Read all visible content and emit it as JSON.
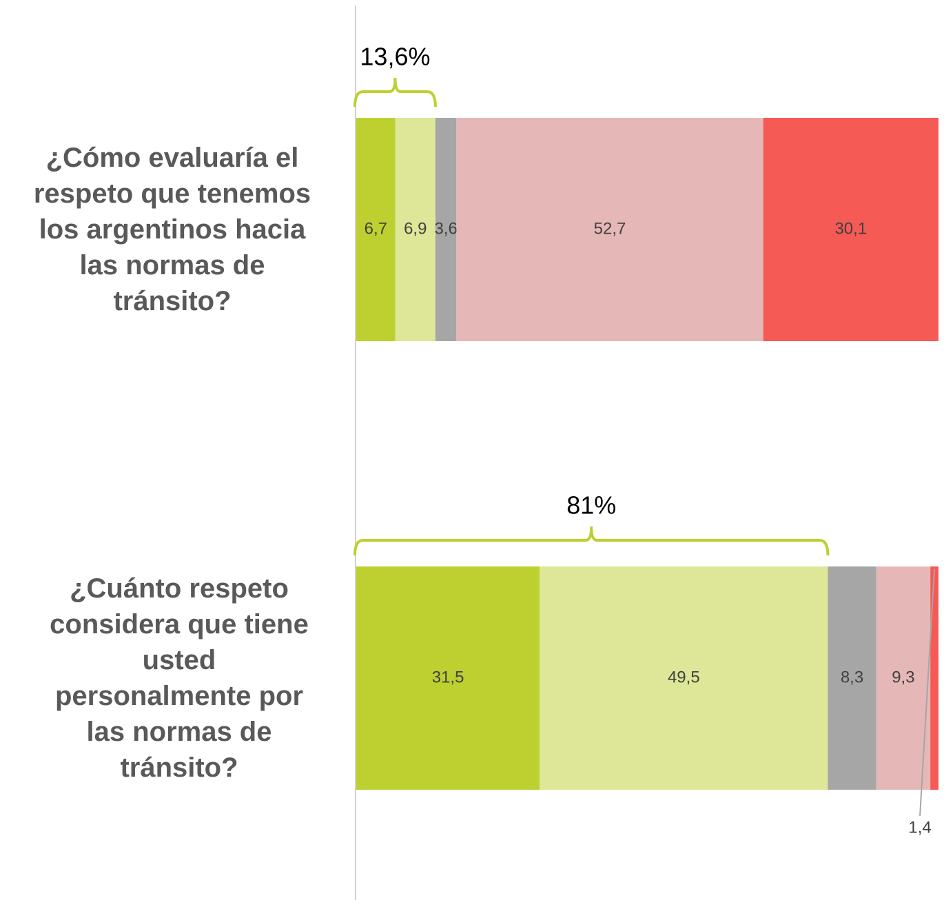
{
  "chart_data": {
    "type": "stacked-barh",
    "categories": [
      "¿Cómo evaluaría el\nrespeto que tenemos\nlos argentinos hacia\nlas normas de\ntránsito?",
      "¿Cuánto respeto\nconsidera que tiene\nusted\npersonalmente por\nlas normas de\ntránsito?"
    ],
    "series": [
      {
        "color": "#bdd030",
        "values": [
          6.7,
          31.5
        ],
        "value_labels": [
          "6,7",
          "31,5"
        ]
      },
      {
        "color": "#dde797",
        "values": [
          6.9,
          49.5
        ],
        "value_labels": [
          "6,9",
          "49,5"
        ]
      },
      {
        "color": "#a6a6a6",
        "values": [
          3.6,
          8.3
        ],
        "value_labels": [
          "3,6",
          "8,3"
        ]
      },
      {
        "color": "#e6b7b7",
        "values": [
          52.7,
          9.3
        ],
        "value_labels": [
          "52,7",
          "9,3"
        ]
      },
      {
        "color": "#f55a55",
        "values": [
          30.1,
          1.4
        ],
        "value_labels": [
          "30,1",
          "1,4"
        ]
      }
    ],
    "annotations": [
      {
        "category": 0,
        "value": 13.6,
        "label": "13,6%",
        "color": "#bdd030"
      },
      {
        "category": 1,
        "value": 81,
        "label": "81%",
        "color": "#bdd030"
      }
    ],
    "xlim": [
      0,
      100
    ]
  }
}
